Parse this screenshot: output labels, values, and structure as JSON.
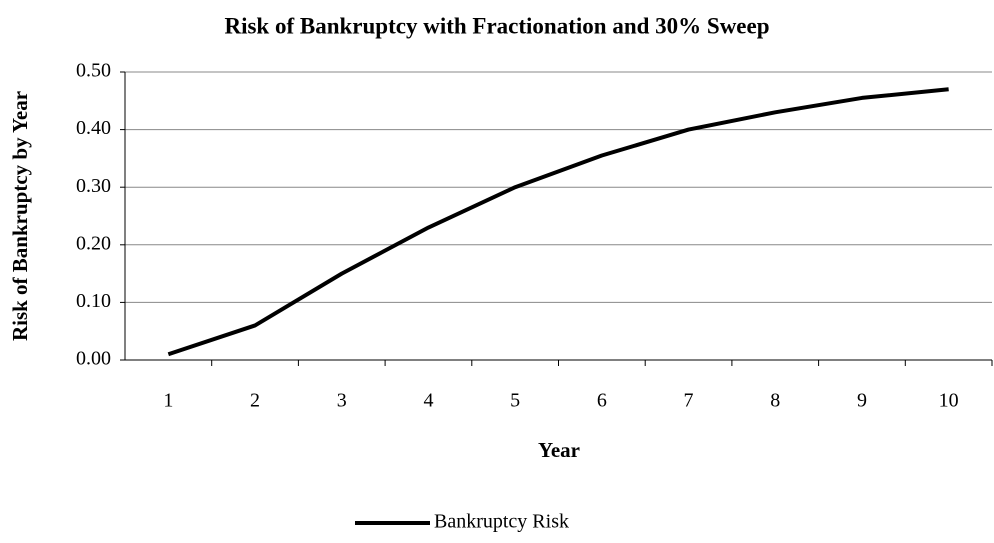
{
  "chart_data": {
    "type": "line",
    "title": "Risk of Bankruptcy with Fractionation and 30% Sweep",
    "x_label": "Year",
    "y_label": "Risk of Bankruptcy by Year",
    "categories": [
      "1",
      "2",
      "3",
      "4",
      "5",
      "6",
      "7",
      "8",
      "9",
      "10"
    ],
    "series": [
      {
        "name": "Bankruptcy Risk",
        "color": "#000000",
        "values": [
          0.01,
          0.06,
          0.15,
          0.23,
          0.3,
          0.355,
          0.4,
          0.43,
          0.455,
          0.47
        ]
      }
    ],
    "ylim": [
      0,
      0.5
    ],
    "yticks": [
      {
        "value": 0,
        "label": "0.00"
      },
      {
        "value": 0.1,
        "label": "0.10"
      },
      {
        "value": 0.2,
        "label": "0.20"
      },
      {
        "value": 0.3,
        "label": "0.30"
      },
      {
        "value": 0.4,
        "label": "0.40"
      },
      {
        "value": 0.5,
        "label": "0.50"
      }
    ],
    "grid": true,
    "legend": "bottom"
  }
}
